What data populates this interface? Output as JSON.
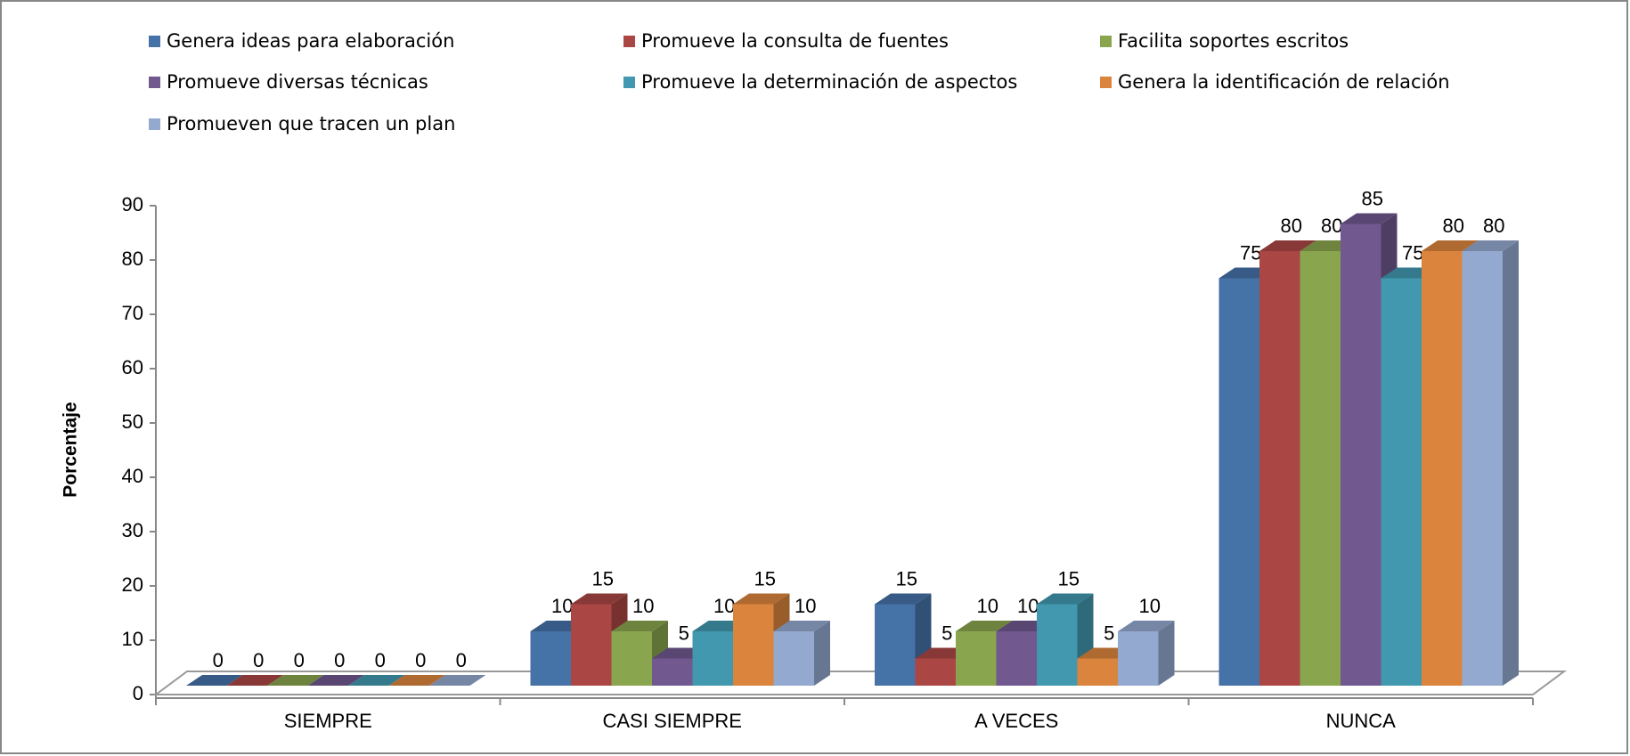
{
  "chart_data": {
    "type": "bar3d",
    "y_label": "Porcentaje",
    "categories": [
      "SIEMPRE",
      "CASI SIEMPRE",
      "A VECES",
      "NUNCA"
    ],
    "series": [
      {
        "name": "Genera ideas para elaboración",
        "color": "#4572a7",
        "values": [
          0,
          10,
          15,
          75
        ]
      },
      {
        "name": "Promueve la consulta de fuentes",
        "color": "#aa4643",
        "values": [
          0,
          15,
          5,
          80
        ]
      },
      {
        "name": "Facilita soportes escritos",
        "color": "#89a54e",
        "values": [
          0,
          10,
          10,
          80
        ]
      },
      {
        "name": "Promueve diversas técnicas",
        "color": "#71588f",
        "values": [
          0,
          5,
          10,
          85
        ]
      },
      {
        "name": "Promueve la determinación de aspectos",
        "color": "#4198af",
        "values": [
          0,
          10,
          15,
          75
        ]
      },
      {
        "name": "Genera la identificación de relación",
        "color": "#db843d",
        "values": [
          0,
          15,
          5,
          80
        ]
      },
      {
        "name": "Promueven que tracen un plan",
        "color": "#93a9cf",
        "values": [
          0,
          10,
          10,
          80
        ]
      }
    ],
    "ylim": [
      0,
      90
    ],
    "yticks": [
      0,
      10,
      20,
      30,
      40,
      50,
      60,
      70,
      80,
      90
    ],
    "legend": "top"
  }
}
